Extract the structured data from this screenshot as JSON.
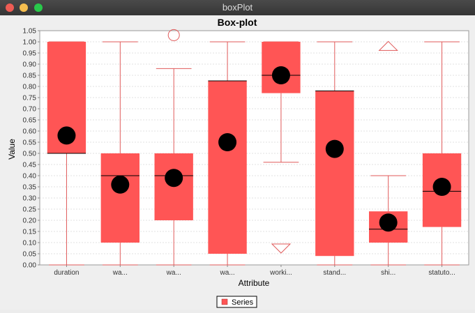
{
  "window": {
    "title": "boxPlot"
  },
  "chart_data": {
    "type": "box",
    "title": "Box-plot",
    "xlabel": "Attribute",
    "ylabel": "Value",
    "ylim": [
      0.0,
      1.05
    ],
    "ytick_step": 0.05,
    "grid": true,
    "legend": {
      "position": "bottom-center",
      "entries": [
        "Series"
      ]
    },
    "colors": {
      "box": "#ff5555",
      "whisker": "#e05a5a",
      "mean": "#000000",
      "grid": "#d9d9d9"
    },
    "categories": [
      "duration",
      "wa...",
      "wa...",
      "wa...",
      "worki...",
      "stand...",
      "shi...",
      "statuto..."
    ],
    "series": [
      {
        "name": "Series",
        "boxes": [
          {
            "min": 0.0,
            "q1": 0.5,
            "median": 0.5,
            "q3": 1.0,
            "max": 1.0,
            "mean": 0.58,
            "outliers": []
          },
          {
            "min": 0.0,
            "q1": 0.1,
            "median": 0.4,
            "q3": 0.5,
            "max": 1.0,
            "mean": 0.36,
            "outliers": []
          },
          {
            "min": 0.0,
            "q1": 0.2,
            "median": 0.4,
            "q3": 0.5,
            "max": 0.88,
            "mean": 0.39,
            "outliers": [
              {
                "value": 1.03,
                "shape": "circle"
              }
            ]
          },
          {
            "min": 0.0,
            "q1": 0.05,
            "median": 0.825,
            "q3": 0.825,
            "max": 1.0,
            "mean": 0.55,
            "outliers": []
          },
          {
            "min": 0.46,
            "q1": 0.77,
            "median": 0.85,
            "q3": 1.0,
            "max": 1.0,
            "mean": 0.85,
            "outliers": [
              {
                "value": 0.075,
                "shape": "triangle-down"
              }
            ]
          },
          {
            "min": 0.0,
            "q1": 0.04,
            "median": 0.78,
            "q3": 0.78,
            "max": 1.0,
            "mean": 0.52,
            "outliers": []
          },
          {
            "min": 0.0,
            "q1": 0.1,
            "median": 0.16,
            "q3": 0.24,
            "max": 0.4,
            "mean": 0.19,
            "outliers": [
              {
                "value": 0.98,
                "shape": "triangle-up"
              }
            ]
          },
          {
            "min": 0.0,
            "q1": 0.17,
            "median": 0.33,
            "q3": 0.5,
            "max": 1.0,
            "mean": 0.35,
            "outliers": []
          }
        ]
      }
    ]
  }
}
